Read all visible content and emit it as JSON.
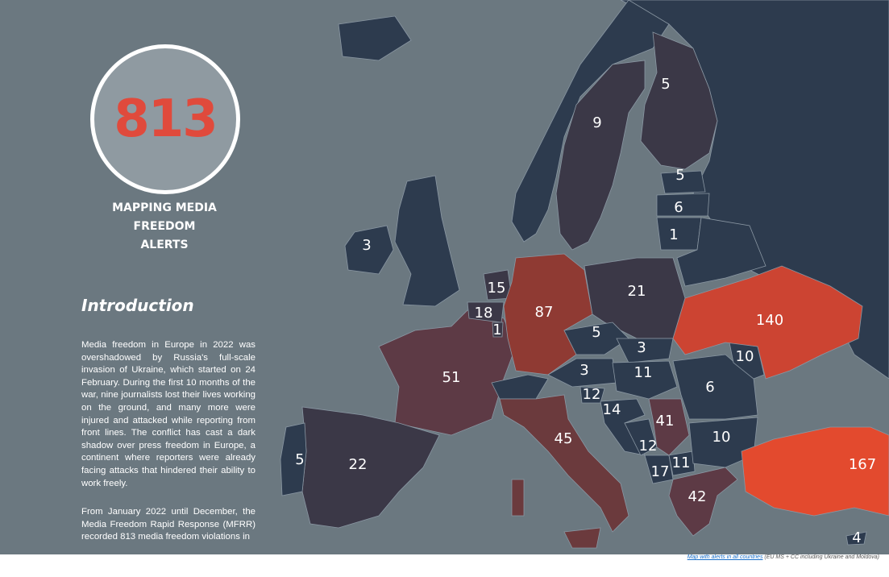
{
  "counter": {
    "total": "813",
    "caption_lines": [
      "MAPPING MEDIA",
      "FREEDOM",
      "ALERTS"
    ]
  },
  "intro": {
    "heading": "Introduction",
    "paragraph_1": "Media freedom in Europe in 2022 was overshadowed by Russia's full-scale invasion of Ukraine, which started on 24 February. During the first 10 months of the war, nine journalists lost their lives working on the ground, and many more were injured and attacked while reporting from front lines. The conflict has cast a dark shadow over press freedom in Europe, a continent where reporters were already facing attacks that hindered their ability to work freely.",
    "paragraph_2": "From January 2022 until December, the Media Freedom Rapid Response (MFRR) recorded 813 media freedom violations in"
  },
  "map": {
    "colors": {
      "sea": "#6b7880",
      "land_no_data": "#2d3b4e",
      "low": "#3b3847",
      "medium": "#5d3a45",
      "high": "#8f3a33",
      "very_high": "#cc4432",
      "highest": "#e34a2e",
      "accent": "#e04a3c"
    },
    "counts": {
      "finland": "5",
      "sweden": "9",
      "estonia": "5",
      "latvia": "6",
      "lithuania": "1",
      "ireland": "3",
      "netherlands": "15",
      "belgium": "18",
      "luxembourg": "1",
      "germany": "87",
      "poland": "21",
      "czechia": "5",
      "slovakia": "3",
      "austria": "3",
      "hungary": "11",
      "slovenia": "12",
      "croatia": "14",
      "serbia": "41",
      "bosnia": "12",
      "montenegro": "17",
      "north_macedonia": "11",
      "romania": "6",
      "moldova": "10",
      "ukraine": "140",
      "bulgaria": "10",
      "greece": "42",
      "turkey": "167",
      "cyprus": "4",
      "france": "51",
      "spain": "22",
      "portugal": "5",
      "italy": "45"
    }
  },
  "footer": {
    "link_text": "Map with alerts in all countries",
    "note": "(EU MS + CC including Ukraine and Moldova)"
  }
}
